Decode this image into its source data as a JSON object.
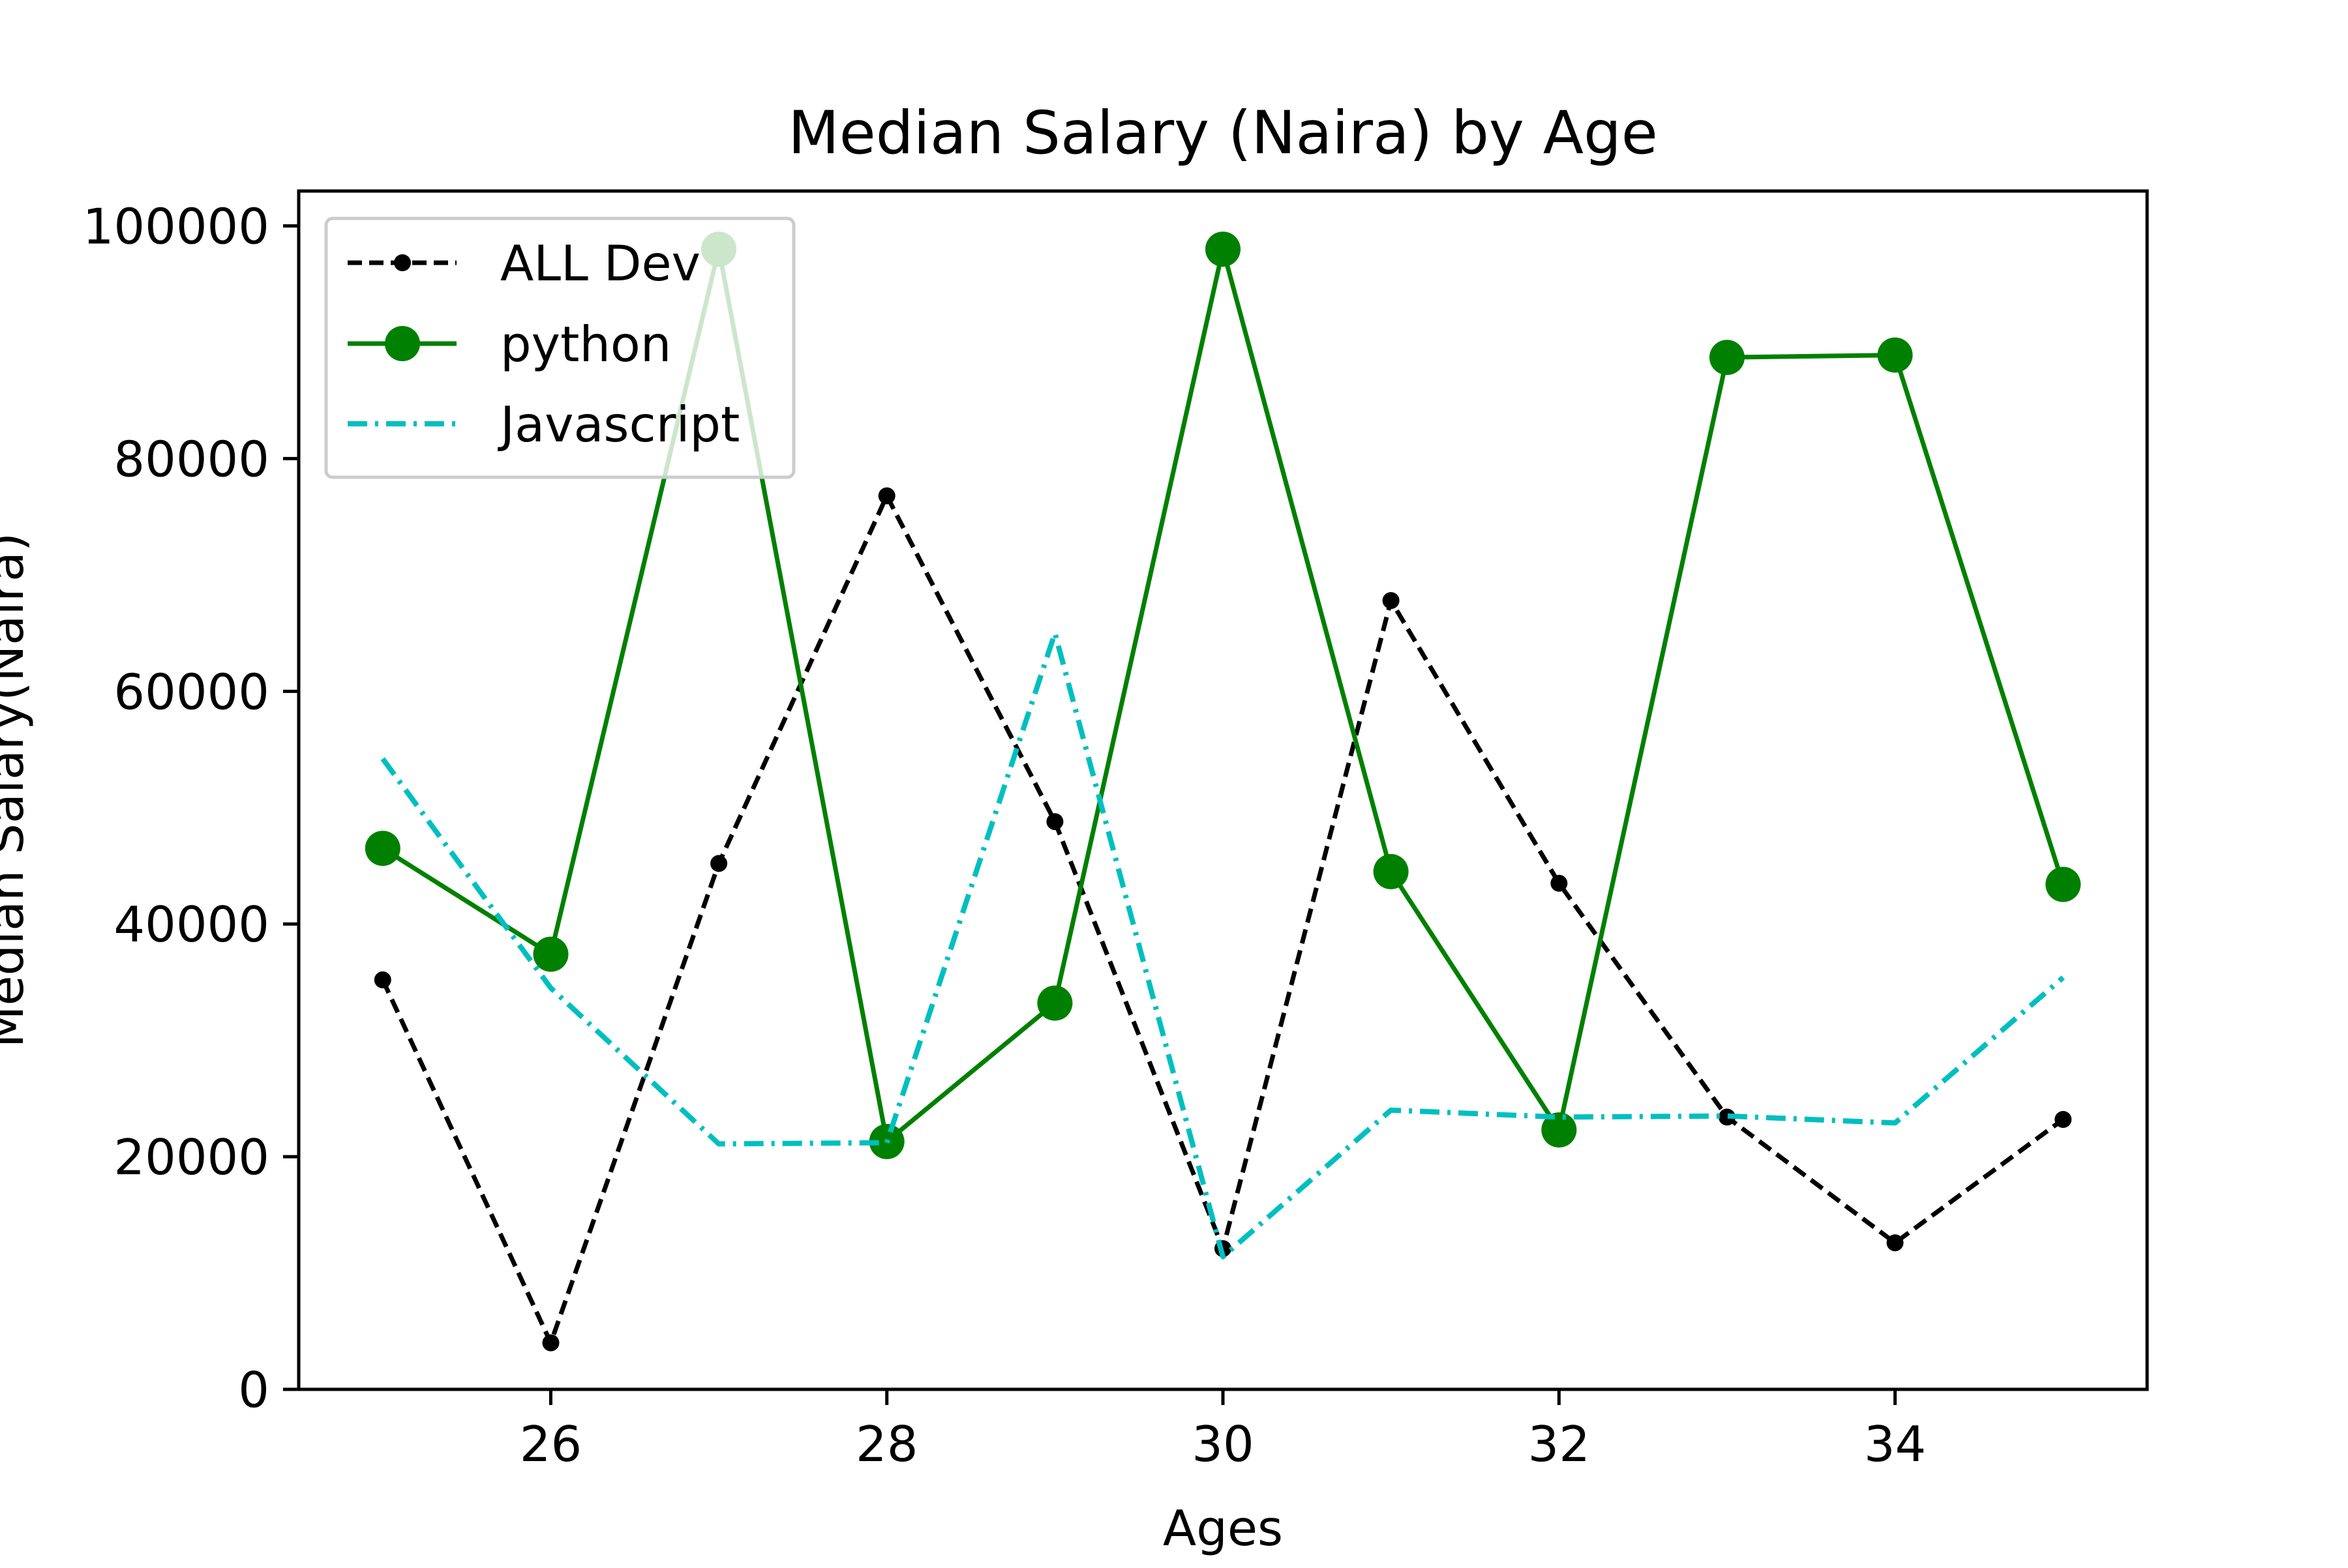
{
  "chart_data": {
    "type": "line",
    "title": "Median Salary (Naira) by Age",
    "xlabel": "Ages",
    "ylabel": "Median Salary(Naira)",
    "x": [
      25,
      26,
      27,
      28,
      29,
      30,
      31,
      32,
      33,
      34,
      35
    ],
    "xlim": [
      24.5,
      35.5
    ],
    "ylim": [
      0,
      103000
    ],
    "xticks": [
      26,
      28,
      30,
      32,
      34
    ],
    "yticks": [
      0,
      20000,
      40000,
      60000,
      80000,
      100000
    ],
    "grid": false,
    "legend_position": "upper left",
    "series": [
      {
        "name": "ALL Dev",
        "color": "#000000",
        "style": "dashed",
        "marker": "small-dot",
        "values": [
          35200,
          4000,
          45200,
          76800,
          48800,
          12100,
          67800,
          43500,
          23400,
          12600,
          23200
        ]
      },
      {
        "name": "python",
        "color": "#008000",
        "style": "solid",
        "marker": "large-dot",
        "values": [
          46500,
          37400,
          98000,
          21300,
          33200,
          98000,
          44500,
          22300,
          88700,
          88900,
          43400
        ]
      },
      {
        "name": "Javascript",
        "color": "#00BFBF",
        "style": "dashdot",
        "marker": "none",
        "values": [
          54200,
          34500,
          21100,
          21200,
          65000,
          11400,
          24000,
          23400,
          23500,
          22900,
          35400
        ]
      }
    ]
  }
}
